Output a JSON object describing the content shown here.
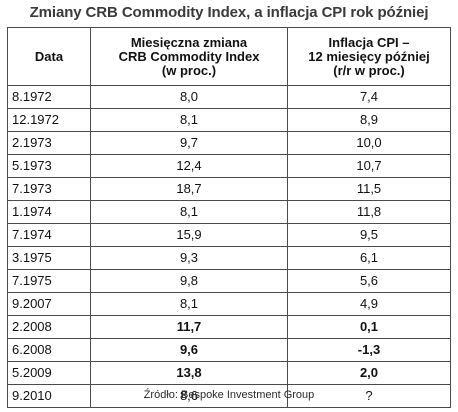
{
  "title": "Zmiany CRB Commodity Index, a inflacja CPI rok później",
  "header": {
    "col1": "Data",
    "col2": [
      "Miesięczna zmiana",
      "CRB Commodity Index",
      "(w proc.)"
    ],
    "col3": [
      "Inflacja CPI –",
      "12 miesięcy później",
      "(r/r w proc.)"
    ]
  },
  "rows": [
    {
      "date": "8.1972",
      "crb": "8,0",
      "cpi": "7,4",
      "bold": false
    },
    {
      "date": "12.1972",
      "crb": "8,1",
      "cpi": "8,9",
      "bold": false
    },
    {
      "date": "2.1973",
      "crb": "9,7",
      "cpi": "10,0",
      "bold": false
    },
    {
      "date": "5.1973",
      "crb": "12,4",
      "cpi": "10,7",
      "bold": false
    },
    {
      "date": "7.1973",
      "crb": "18,7",
      "cpi": "11,5",
      "bold": false
    },
    {
      "date": "1.1974",
      "crb": "8,1",
      "cpi": "11,8",
      "bold": false
    },
    {
      "date": "7.1974",
      "crb": "15,9",
      "cpi": "9,5",
      "bold": false
    },
    {
      "date": "3.1975",
      "crb": "9,3",
      "cpi": "6,1",
      "bold": false
    },
    {
      "date": "7.1975",
      "crb": "9,8",
      "cpi": "5,6",
      "bold": false
    },
    {
      "date": "9.2007",
      "crb": "8,1",
      "cpi": "4,9",
      "bold": false
    },
    {
      "date": "2.2008",
      "crb": "11,7",
      "cpi": "0,1",
      "bold": true
    },
    {
      "date": "6.2008",
      "crb": "9,6",
      "cpi": "-1,3",
      "bold": true
    },
    {
      "date": "5.2009",
      "crb": "13,8",
      "cpi": "2,0",
      "bold": true
    },
    {
      "date": "9.2010",
      "crb": "8,6",
      "cpi": "?",
      "bold": false
    }
  ],
  "source": "Źródło: Bespoke Investment Group"
}
